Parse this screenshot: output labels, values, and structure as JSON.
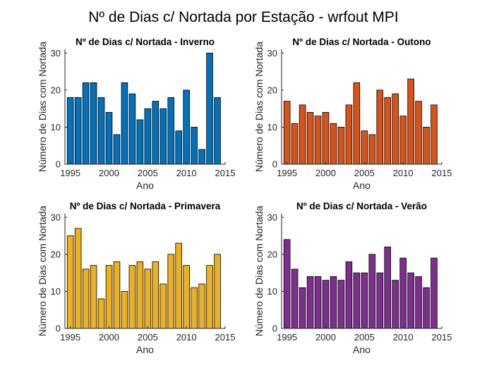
{
  "figure_title": "Nº de Dias c/ Nortada por Estação - wrfout MPI",
  "chart_data": [
    {
      "type": "bar",
      "title": "Nº de Dias c/ Nortada - Inverno",
      "xlabel": "Ano",
      "ylabel": "Número de Dias com Nortada",
      "color": "#0072BD",
      "xlim": [
        1994.3,
        2015.0
      ],
      "ylim": [
        0,
        31
      ],
      "xticks": [
        1995,
        2000,
        2005,
        2010,
        2015
      ],
      "yticks": [
        0,
        10,
        20,
        30
      ],
      "categories": [
        1995,
        1996,
        1997,
        1998,
        1999,
        2000,
        2001,
        2002,
        2003,
        2004,
        2005,
        2006,
        2007,
        2008,
        2009,
        2010,
        2011,
        2012,
        2013,
        2014
      ],
      "values": [
        18,
        18,
        22,
        22,
        18,
        14,
        8,
        22,
        19,
        12,
        15,
        17,
        15,
        18,
        9,
        20,
        10,
        4,
        30,
        18
      ]
    },
    {
      "type": "bar",
      "title": "Nº de Dias c/ Nortada - Outono",
      "xlabel": "Ano",
      "ylabel": "Número de Dias com Nortada",
      "color": "#D95319",
      "xlim": [
        1994.3,
        2015.0
      ],
      "ylim": [
        0,
        31
      ],
      "xticks": [
        1995,
        2000,
        2005,
        2010,
        2015
      ],
      "yticks": [
        0,
        10,
        20,
        30
      ],
      "categories": [
        1995,
        1996,
        1997,
        1998,
        1999,
        2000,
        2001,
        2002,
        2003,
        2004,
        2005,
        2006,
        2007,
        2008,
        2009,
        2010,
        2011,
        2012,
        2013,
        2014
      ],
      "values": [
        17,
        11,
        16,
        14,
        13,
        14,
        11,
        10,
        16,
        22,
        9,
        8,
        20,
        18,
        19,
        13,
        23,
        17,
        10,
        16
      ]
    },
    {
      "type": "bar",
      "title": "Nº de Dias c/ Nortada - Primavera",
      "xlabel": "Ano",
      "ylabel": "Número de Dias com Nortada",
      "color": "#EDB120",
      "xlim": [
        1994.3,
        2015.0
      ],
      "ylim": [
        0,
        31
      ],
      "xticks": [
        1995,
        2000,
        2005,
        2010,
        2015
      ],
      "yticks": [
        0,
        10,
        20,
        30
      ],
      "categories": [
        1995,
        1996,
        1997,
        1998,
        1999,
        2000,
        2001,
        2002,
        2003,
        2004,
        2005,
        2006,
        2007,
        2008,
        2009,
        2010,
        2011,
        2012,
        2013,
        2014
      ],
      "values": [
        25,
        27,
        16,
        17,
        8,
        17,
        18,
        10,
        17,
        18,
        16,
        18,
        12,
        20,
        23,
        17,
        11,
        12,
        17,
        20
      ]
    },
    {
      "type": "bar",
      "title": "Nº de Dias c/ Nortada - Verão",
      "xlabel": "Ano",
      "ylabel": "Número de Dias com Nortada",
      "color": "#7E2F8E",
      "xlim": [
        1994.3,
        2015.0
      ],
      "ylim": [
        0,
        31
      ],
      "xticks": [
        1995,
        2000,
        2005,
        2010,
        2015
      ],
      "yticks": [
        0,
        10,
        20,
        30
      ],
      "categories": [
        1995,
        1996,
        1997,
        1998,
        1999,
        2000,
        2001,
        2002,
        2003,
        2004,
        2005,
        2006,
        2007,
        2008,
        2009,
        2010,
        2011,
        2012,
        2013,
        2014
      ],
      "values": [
        24,
        16,
        11,
        14,
        14,
        13,
        14,
        13,
        18,
        15,
        15,
        20,
        15,
        22,
        13,
        19,
        15,
        14,
        11,
        19
      ]
    }
  ]
}
